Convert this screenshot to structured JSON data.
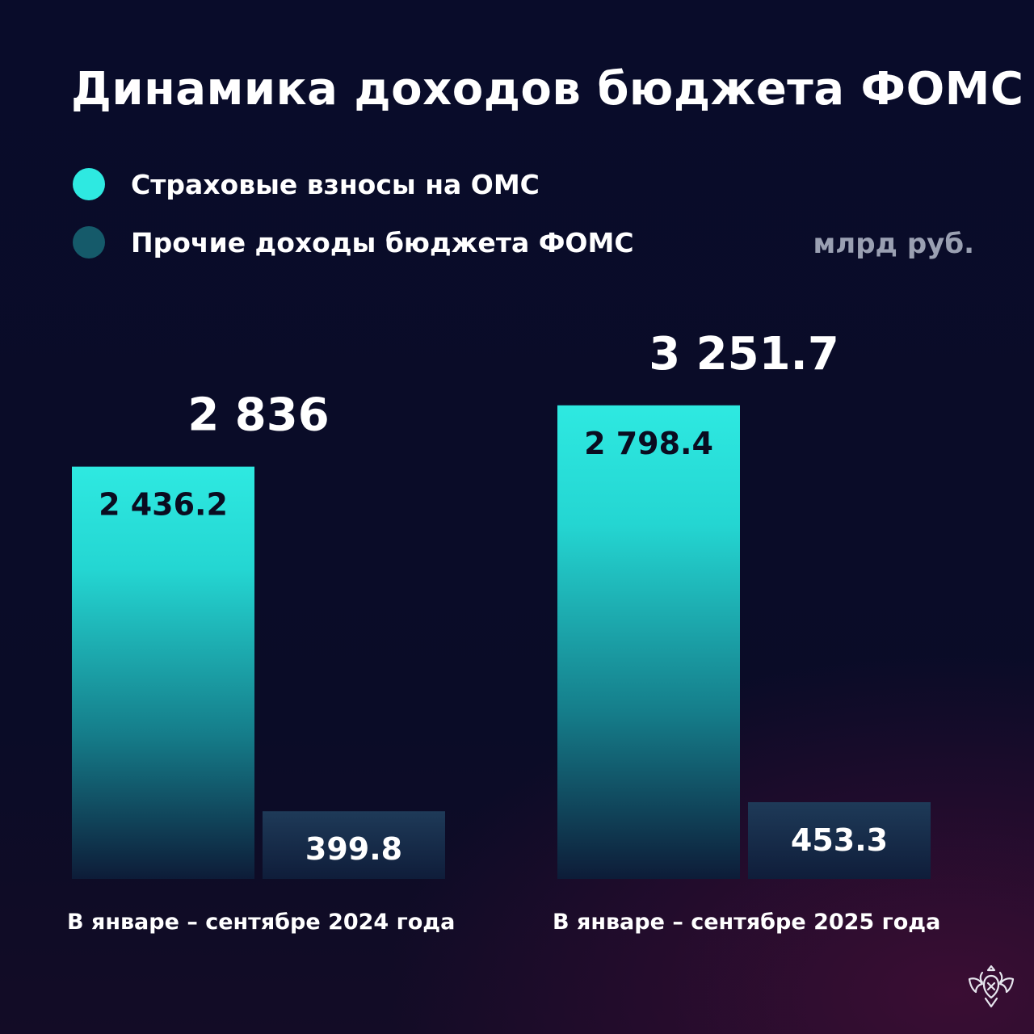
{
  "title": "Динамика доходов бюджета ФОМС",
  "unit": "млрд руб.",
  "colors": {
    "insurance_top": "#2ee9e1",
    "insurance_bottom": "#0d1c38",
    "other_top": "#1e3a58",
    "other_bottom": "#0f1d3a",
    "legend_insurance": "#2ee9e1",
    "legend_other": "#155a6a"
  },
  "legend": [
    {
      "label": "Страховые взносы на ОМС",
      "color": "#2ee9e1"
    },
    {
      "label": "Прочие доходы бюджета ФОМС",
      "color": "#155a6a"
    }
  ],
  "chart_data": {
    "type": "bar",
    "categories": [
      "В январе – сентябре 2024 года",
      "В январе – сентябре 2025 года"
    ],
    "series": [
      {
        "name": "Страховые взносы на ОМС",
        "values": [
          2436.2,
          2798.4
        ],
        "labels": [
          "2 436.2",
          "2 798.4"
        ]
      },
      {
        "name": "Прочие доходы бюджета ФОМС",
        "values": [
          399.8,
          453.3
        ],
        "labels": [
          "399.8",
          "453.3"
        ]
      }
    ],
    "totals": [
      2836,
      3251.7
    ],
    "total_labels": [
      "2 836",
      "3 251.7"
    ],
    "ylim": [
      0,
      2950
    ],
    "grid": false,
    "legend_position": "top-left"
  }
}
